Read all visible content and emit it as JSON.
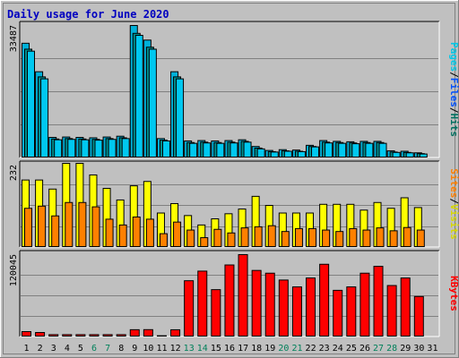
{
  "title": "Daily usage for June 2020",
  "chart_data": {
    "type": "bar",
    "title": "Daily usage for June 2020",
    "days": [
      "1",
      "2",
      "3",
      "4",
      "5",
      "6",
      "7",
      "8",
      "9",
      "10",
      "11",
      "12",
      "13",
      "14",
      "15",
      "16",
      "17",
      "18",
      "19",
      "20",
      "21",
      "22",
      "23",
      "24",
      "25",
      "26",
      "27",
      "28",
      "29",
      "30",
      "31"
    ],
    "weekend_days": [
      "6",
      "7",
      "13",
      "14",
      "20",
      "21",
      "27",
      "28"
    ],
    "panels": [
      {
        "id": "top",
        "ymax": 33487,
        "ymax_label": "33487",
        "right_label": [
          {
            "text": "Pages",
            "color": "#00c8e8"
          },
          {
            "text": "/",
            "color": "#000000"
          },
          {
            "text": "Files",
            "color": "#0050ff"
          },
          {
            "text": "/",
            "color": "#000000"
          },
          {
            "text": "Hits",
            "color": "#007060"
          }
        ],
        "series": [
          {
            "name": "Hits",
            "color": "#00b0d8",
            "values": [
              29000,
              21800,
              5200,
              5300,
              5200,
              5100,
              5300,
              5500,
              33487,
              29800,
              4900,
              21800,
              4300,
              4400,
              4300,
              4400,
              4600,
              2900,
              1900,
              2100,
              2000,
              3200,
              4400,
              4200,
              4100,
              4200,
              4200,
              1800,
              1700,
              1300,
              0
            ]
          },
          {
            "name": "Files",
            "color": "#009090",
            "values": [
              27500,
              20500,
              4800,
              4900,
              4800,
              4700,
              4900,
              5100,
              31500,
              28000,
              4500,
              20500,
              3900,
              4000,
              3900,
              4000,
              4200,
              2500,
              1600,
              1800,
              1700,
              2900,
              4000,
              3900,
              3800,
              3900,
              3900,
              1500,
              1400,
              1100,
              0
            ]
          },
          {
            "name": "Pages",
            "color": "#00c8f0",
            "values": [
              27000,
              20000,
              4600,
              4700,
              4600,
              4500,
              4700,
              4900,
              31000,
              27500,
              4300,
              20000,
              3700,
              3800,
              3700,
              3800,
              4000,
              2300,
              1500,
              1700,
              1600,
              2800,
              3800,
              3700,
              3600,
              3700,
              3700,
              1400,
              1300,
              1000,
              0
            ]
          }
        ]
      },
      {
        "id": "middle",
        "ymax": 232,
        "ymax_label": "232",
        "right_label": [
          {
            "text": "Sites",
            "color": "#ff7f00"
          },
          {
            "text": "/",
            "color": "#000000"
          },
          {
            "text": "Visits",
            "color": "#d8d800"
          }
        ],
        "series": [
          {
            "name": "Visits",
            "color": "#ffff00",
            "values": [
              186,
              186,
              161,
              232,
              232,
              200,
              163,
              131,
              170,
              182,
              95,
              121,
              88,
              62,
              79,
              93,
              106,
              141,
              116,
              95,
              95,
              95,
              119,
              119,
              119,
              103,
              124,
              108,
              137,
              110,
              0
            ]
          },
          {
            "name": "Sites",
            "color": "#ff8000",
            "values": [
              108,
              114,
              87,
              124,
              124,
              112,
              78,
              62,
              84,
              78,
              38,
              70,
              48,
              27,
              50,
              40,
              54,
              57,
              60,
              44,
              52,
              52,
              48,
              44,
              52,
              48,
              54,
              46,
              55,
              48,
              0
            ]
          }
        ]
      },
      {
        "id": "bottom",
        "ymax": 120045,
        "ymax_label": "120045",
        "right_label": [
          {
            "text": "KBytes",
            "color": "#ff0000"
          }
        ],
        "series": [
          {
            "name": "KBytes",
            "color": "#ff0000",
            "values": [
              7800,
              6500,
              3400,
              3400,
              3400,
              3400,
              3400,
              3400,
              10600,
              10700,
              1800,
              10500,
              82000,
              96000,
              69000,
              105000,
              120045,
              97000,
              93000,
              83000,
              73000,
              86000,
              106000,
              68000,
              73000,
              93000,
              103000,
              75000,
              86000,
              59000,
              0
            ]
          }
        ]
      }
    ]
  }
}
